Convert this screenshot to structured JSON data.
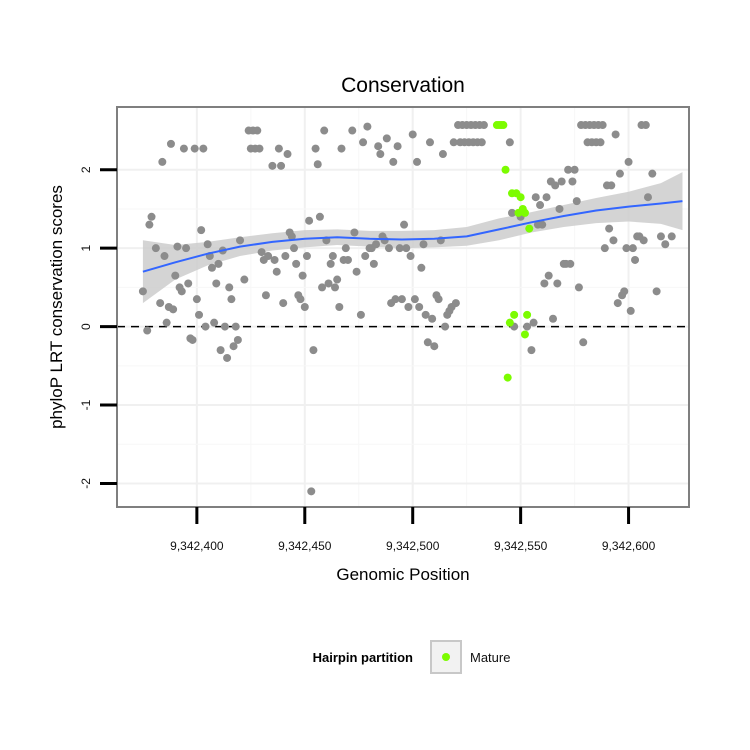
{
  "chart_data": {
    "type": "scatter",
    "title": "Conservation",
    "xlabel": "Genomic Position",
    "ylabel": "phyloP LRT conservation scores",
    "xlim": [
      9342363,
      9342628
    ],
    "ylim": [
      -2.3,
      2.8
    ],
    "x_ticks": [
      {
        "value": 9342400,
        "label": "9,342,400"
      },
      {
        "value": 9342450,
        "label": "9,342,450"
      },
      {
        "value": 9342500,
        "label": "9,342,500"
      },
      {
        "value": 9342550,
        "label": "9,342,550"
      },
      {
        "value": 9342600,
        "label": "9,342,600"
      }
    ],
    "y_ticks": [
      {
        "value": -2,
        "label": "-2"
      },
      {
        "value": -1,
        "label": "-1"
      },
      {
        "value": 0,
        "label": "0"
      },
      {
        "value": 1,
        "label": "1"
      },
      {
        "value": 2,
        "label": "2"
      }
    ],
    "grid": true,
    "reference_line": {
      "y": 0,
      "style": "dashed"
    },
    "legend": {
      "position": "bottom",
      "title": "Hairpin partition",
      "entries": [
        {
          "label": "Mature",
          "color": "#7cfc00"
        }
      ]
    },
    "colors": {
      "points": "#8c8c8c",
      "mature": "#7cfc00",
      "trend": "#3366ff",
      "band": "#cccccc"
    },
    "series": [
      {
        "points": [
          [
            9342375,
            0.45
          ],
          [
            9342377,
            -0.05
          ],
          [
            9342378,
            1.3
          ],
          [
            9342379,
            1.4
          ],
          [
            9342381,
            1.0
          ],
          [
            9342383,
            0.3
          ],
          [
            9342384,
            2.1
          ],
          [
            9342385,
            0.9
          ],
          [
            9342386,
            0.05
          ],
          [
            9342387,
            0.25
          ],
          [
            9342388,
            2.33
          ],
          [
            9342389,
            0.22
          ],
          [
            9342390,
            0.65
          ],
          [
            9342391,
            1.02
          ],
          [
            9342392,
            0.5
          ],
          [
            9342393,
            0.45
          ],
          [
            9342394,
            2.27
          ],
          [
            9342395,
            1.0
          ],
          [
            9342396,
            0.55
          ],
          [
            9342397,
            -0.15
          ],
          [
            9342398,
            -0.17
          ],
          [
            9342399,
            2.27
          ],
          [
            9342400,
            0.35
          ],
          [
            9342401,
            0.15
          ],
          [
            9342402,
            1.23
          ],
          [
            9342403,
            2.27
          ],
          [
            9342404,
            0.0
          ],
          [
            9342405,
            1.05
          ],
          [
            9342406,
            0.9
          ],
          [
            9342407,
            0.75
          ],
          [
            9342408,
            0.05
          ],
          [
            9342409,
            0.55
          ],
          [
            9342410,
            0.8
          ],
          [
            9342411,
            -0.3
          ],
          [
            9342412,
            0.97
          ],
          [
            9342413,
            0.0
          ],
          [
            9342414,
            -0.4
          ],
          [
            9342415,
            0.5
          ],
          [
            9342416,
            0.35
          ],
          [
            9342417,
            -0.25
          ],
          [
            9342418,
            0.0
          ],
          [
            9342419,
            -0.17
          ],
          [
            9342420,
            1.1
          ],
          [
            9342422,
            0.6
          ],
          [
            9342424,
            2.5
          ],
          [
            9342425,
            2.27
          ],
          [
            9342426,
            2.5
          ],
          [
            9342427,
            2.27
          ],
          [
            9342428,
            2.5
          ],
          [
            9342429,
            2.27
          ],
          [
            9342430,
            0.95
          ],
          [
            9342431,
            0.85
          ],
          [
            9342432,
            0.4
          ],
          [
            9342433,
            0.9
          ],
          [
            9342435,
            2.05
          ],
          [
            9342436,
            0.85
          ],
          [
            9342437,
            0.7
          ],
          [
            9342438,
            2.27
          ],
          [
            9342439,
            2.05
          ],
          [
            9342440,
            0.3
          ],
          [
            9342441,
            0.9
          ],
          [
            9342442,
            2.2
          ],
          [
            9342443,
            1.2
          ],
          [
            9342444,
            1.15
          ],
          [
            9342445,
            1.0
          ],
          [
            9342446,
            0.8
          ],
          [
            9342447,
            0.4
          ],
          [
            9342448,
            0.35
          ],
          [
            9342449,
            0.65
          ],
          [
            9342450,
            0.25
          ],
          [
            9342451,
            0.9
          ],
          [
            9342452,
            1.35
          ],
          [
            9342453,
            -2.1
          ],
          [
            9342454,
            -0.3
          ],
          [
            9342455,
            2.27
          ],
          [
            9342456,
            2.07
          ],
          [
            9342457,
            1.4
          ],
          [
            9342458,
            0.5
          ],
          [
            9342459,
            2.5
          ],
          [
            9342460,
            1.1
          ],
          [
            9342461,
            0.55
          ],
          [
            9342462,
            0.8
          ],
          [
            9342463,
            0.9
          ],
          [
            9342464,
            0.5
          ],
          [
            9342465,
            0.6
          ],
          [
            9342466,
            0.25
          ],
          [
            9342467,
            2.27
          ],
          [
            9342468,
            0.85
          ],
          [
            9342469,
            1.0
          ],
          [
            9342470,
            0.85
          ],
          [
            9342472,
            2.5
          ],
          [
            9342473,
            1.2
          ],
          [
            9342474,
            0.7
          ],
          [
            9342476,
            0.15
          ],
          [
            9342477,
            2.35
          ],
          [
            9342478,
            0.9
          ],
          [
            9342479,
            2.55
          ],
          [
            9342480,
            1.0
          ],
          [
            9342481,
            1.0
          ],
          [
            9342482,
            0.8
          ],
          [
            9342483,
            1.05
          ],
          [
            9342484,
            2.3
          ],
          [
            9342485,
            2.2
          ],
          [
            9342486,
            1.15
          ],
          [
            9342487,
            1.1
          ],
          [
            9342488,
            2.4
          ],
          [
            9342489,
            1.0
          ],
          [
            9342490,
            0.3
          ],
          [
            9342491,
            2.1
          ],
          [
            9342492,
            0.35
          ],
          [
            9342493,
            2.3
          ],
          [
            9342494,
            1.0
          ],
          [
            9342495,
            0.35
          ],
          [
            9342496,
            1.3
          ],
          [
            9342497,
            1.0
          ],
          [
            9342498,
            0.25
          ],
          [
            9342499,
            0.9
          ],
          [
            9342500,
            2.45
          ],
          [
            9342501,
            0.35
          ],
          [
            9342502,
            2.1
          ],
          [
            9342503,
            0.25
          ],
          [
            9342504,
            0.75
          ],
          [
            9342505,
            1.05
          ],
          [
            9342506,
            0.15
          ],
          [
            9342507,
            -0.2
          ],
          [
            9342508,
            2.35
          ],
          [
            9342509,
            0.1
          ],
          [
            9342510,
            -0.25
          ],
          [
            9342511,
            0.4
          ],
          [
            9342512,
            0.35
          ],
          [
            9342513,
            1.1
          ],
          [
            9342514,
            2.2
          ],
          [
            9342515,
            0.0
          ],
          [
            9342516,
            0.15
          ],
          [
            9342517,
            0.2
          ],
          [
            9342518,
            0.25
          ],
          [
            9342519,
            2.35
          ],
          [
            9342520,
            0.3
          ],
          [
            9342521,
            2.57
          ],
          [
            9342522,
            2.35
          ],
          [
            9342523,
            2.57
          ],
          [
            9342524,
            2.35
          ],
          [
            9342525,
            2.57
          ],
          [
            9342526,
            2.35
          ],
          [
            9342527,
            2.57
          ],
          [
            9342528,
            2.35
          ],
          [
            9342529,
            2.57
          ],
          [
            9342530,
            2.35
          ],
          [
            9342531,
            2.57
          ],
          [
            9342532,
            2.35
          ],
          [
            9342533,
            2.57
          ],
          [
            9342545,
            2.35
          ],
          [
            9342546,
            1.45
          ],
          [
            9342547,
            0.0
          ],
          [
            9342550,
            1.4
          ],
          [
            9342553,
            0.0
          ],
          [
            9342555,
            -0.3
          ],
          [
            9342556,
            0.05
          ],
          [
            9342557,
            1.65
          ],
          [
            9342558,
            1.3
          ],
          [
            9342559,
            1.55
          ],
          [
            9342560,
            1.3
          ],
          [
            9342561,
            0.55
          ],
          [
            9342562,
            1.65
          ],
          [
            9342563,
            0.65
          ],
          [
            9342564,
            1.85
          ],
          [
            9342565,
            0.1
          ],
          [
            9342566,
            1.8
          ],
          [
            9342567,
            0.55
          ],
          [
            9342568,
            1.5
          ],
          [
            9342569,
            1.85
          ],
          [
            9342570,
            0.8
          ],
          [
            9342571,
            0.8
          ],
          [
            9342572,
            2.0
          ],
          [
            9342573,
            0.8
          ],
          [
            9342574,
            1.85
          ],
          [
            9342575,
            2.0
          ],
          [
            9342576,
            1.6
          ],
          [
            9342577,
            0.5
          ],
          [
            9342578,
            2.57
          ],
          [
            9342579,
            -0.2
          ],
          [
            9342580,
            2.57
          ],
          [
            9342581,
            2.35
          ],
          [
            9342582,
            2.57
          ],
          [
            9342583,
            2.35
          ],
          [
            9342584,
            2.57
          ],
          [
            9342585,
            2.35
          ],
          [
            9342586,
            2.57
          ],
          [
            9342587,
            2.35
          ],
          [
            9342588,
            2.57
          ],
          [
            9342589,
            1.0
          ],
          [
            9342590,
            1.8
          ],
          [
            9342591,
            1.25
          ],
          [
            9342592,
            1.8
          ],
          [
            9342593,
            1.1
          ],
          [
            9342594,
            2.45
          ],
          [
            9342595,
            0.3
          ],
          [
            9342596,
            1.95
          ],
          [
            9342597,
            0.4
          ],
          [
            9342598,
            0.45
          ],
          [
            9342599,
            1.0
          ],
          [
            9342600,
            2.1
          ],
          [
            9342601,
            0.2
          ],
          [
            9342602,
            1.0
          ],
          [
            9342603,
            0.85
          ],
          [
            9342604,
            1.15
          ],
          [
            9342605,
            1.15
          ],
          [
            9342606,
            2.57
          ],
          [
            9342607,
            1.1
          ],
          [
            9342608,
            2.57
          ],
          [
            9342609,
            1.65
          ],
          [
            9342611,
            1.95
          ],
          [
            9342613,
            0.45
          ],
          [
            9342615,
            1.15
          ],
          [
            9342617,
            1.05
          ],
          [
            9342620,
            1.15
          ]
        ]
      },
      {
        "name": "Mature",
        "points": [
          [
            9342539,
            2.57
          ],
          [
            9342540,
            2.57
          ],
          [
            9342541,
            2.57
          ],
          [
            9342542,
            2.57
          ],
          [
            9342543,
            2.0
          ],
          [
            9342544,
            -0.65
          ],
          [
            9342545,
            0.05
          ],
          [
            9342546,
            1.7
          ],
          [
            9342547,
            0.15
          ],
          [
            9342548,
            1.7
          ],
          [
            9342549,
            1.45
          ],
          [
            9342550,
            1.65
          ],
          [
            9342551,
            1.5
          ],
          [
            9342552,
            1.45
          ],
          [
            9342553,
            0.15
          ],
          [
            9342554,
            1.25
          ],
          [
            9342552,
            -0.1
          ]
        ]
      }
    ],
    "trend": {
      "type": "smooth",
      "x": [
        9342375,
        9342390,
        9342405,
        9342420,
        9342435,
        9342450,
        9342465,
        9342480,
        9342495,
        9342510,
        9342525,
        9342540,
        9342555,
        9342570,
        9342585,
        9342600,
        9342615,
        9342625
      ],
      "y": [
        0.7,
        0.82,
        0.93,
        1.02,
        1.08,
        1.12,
        1.14,
        1.12,
        1.11,
        1.12,
        1.15,
        1.24,
        1.33,
        1.41,
        1.48,
        1.53,
        1.57,
        1.6
      ],
      "lower": [
        0.3,
        0.6,
        0.78,
        0.9,
        0.97,
        1.01,
        1.04,
        1.02,
        1.0,
        1.01,
        1.03,
        1.1,
        1.2,
        1.27,
        1.32,
        1.34,
        1.31,
        1.23
      ],
      "upper": [
        1.1,
        1.04,
        1.08,
        1.14,
        1.19,
        1.23,
        1.24,
        1.22,
        1.22,
        1.23,
        1.27,
        1.38,
        1.46,
        1.55,
        1.64,
        1.72,
        1.83,
        1.97
      ]
    }
  }
}
